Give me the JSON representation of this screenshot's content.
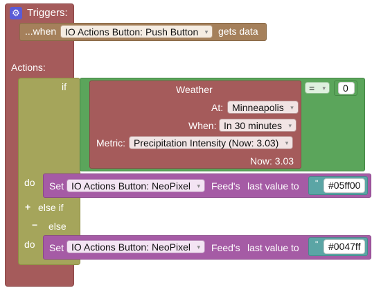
{
  "triggers": {
    "label": "Triggers:",
    "when_prefix": "...when",
    "when_dropdown": "IO Actions Button: Push Button",
    "when_suffix": "gets data"
  },
  "actions": {
    "label": "Actions:",
    "if_label": "if",
    "weather": {
      "title": "Weather",
      "at_label": "At:",
      "at_value": "Minneapolis",
      "when_label": "When:",
      "when_value": "In 30 minutes",
      "metric_label": "Metric:",
      "metric_value": "Precipitation Intensity (Now: 3.03)",
      "now_label": "Now: 3.03"
    },
    "compare_op": "=",
    "compare_value": "0",
    "do_label": "do",
    "set1": {
      "set_label": "Set",
      "feed_dropdown": "IO Actions Button: NeoPixel",
      "feeds_label": "Feed's",
      "last_value_label": "last value to",
      "quote": "\"",
      "value": "#05ff00"
    },
    "else_if_label": "else if",
    "else_label": "else",
    "do2_label": "do",
    "set2": {
      "set_label": "Set",
      "feed_dropdown": "IO Actions Button: NeoPixel",
      "feeds_label": "Feed's",
      "last_value_label": "last value to",
      "quote": "\"",
      "value": "#0047ff"
    },
    "plus_icon": "+",
    "minus_icon": "−"
  },
  "icons": {
    "gear": "gear-icon",
    "caret": "▾"
  }
}
